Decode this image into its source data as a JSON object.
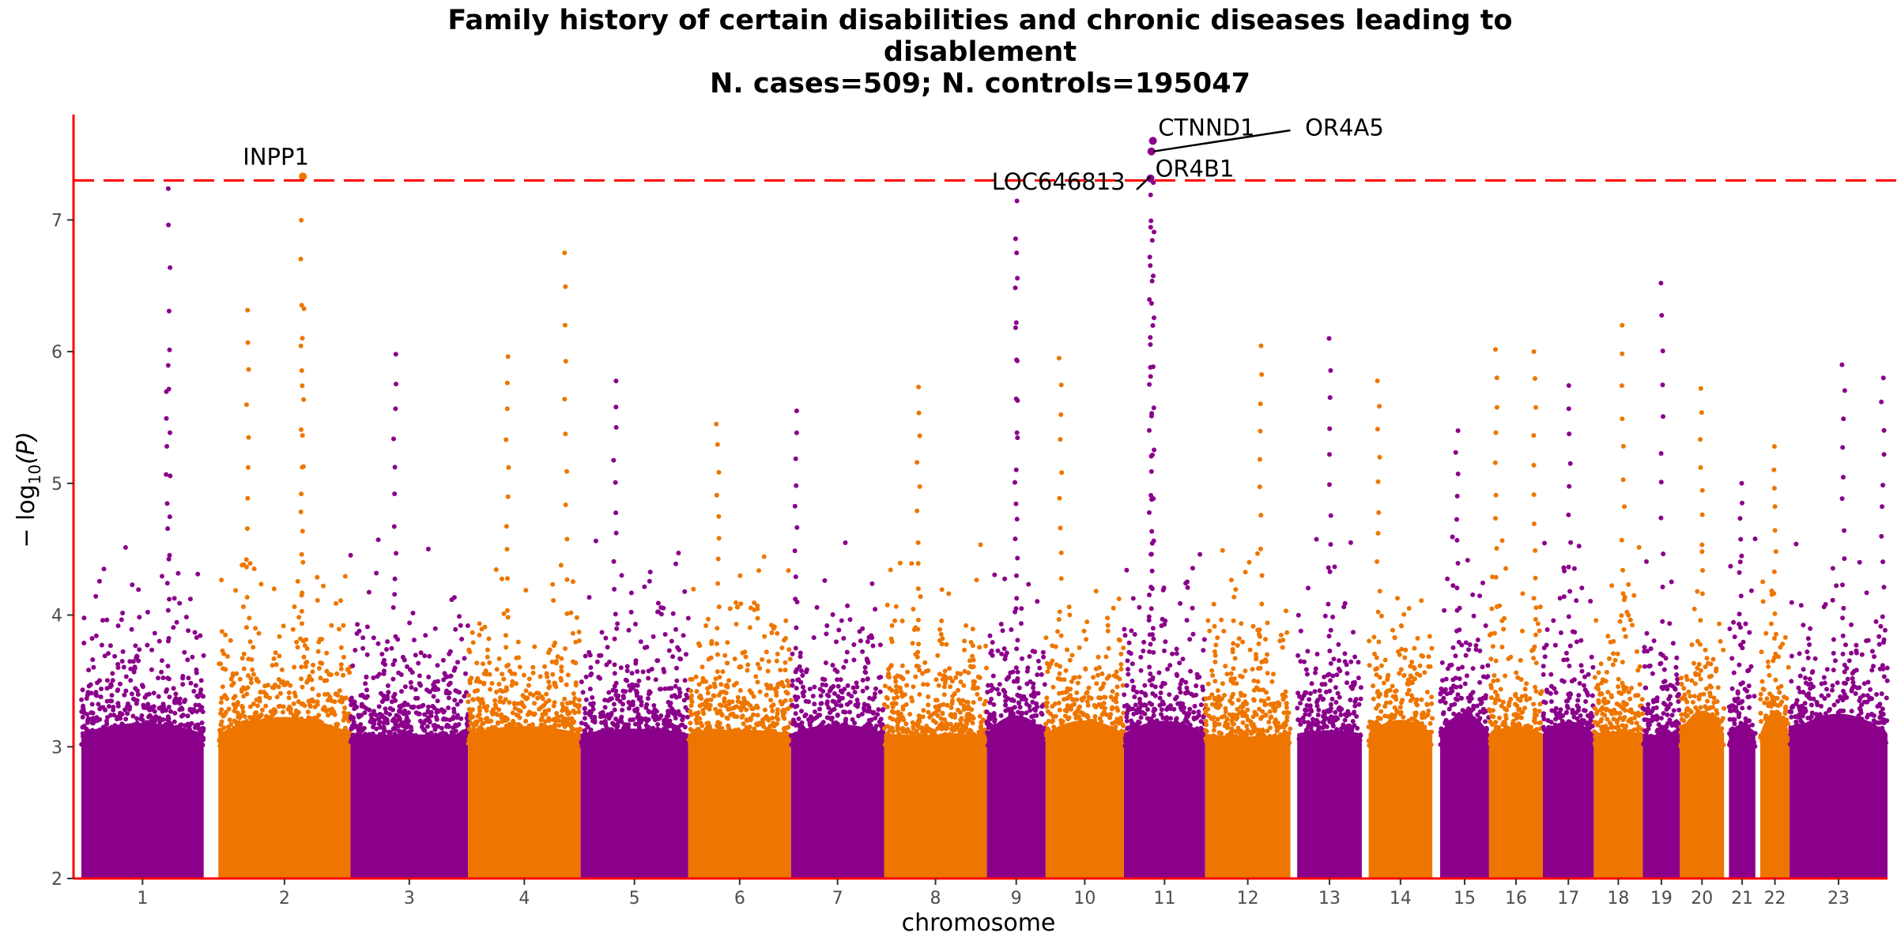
{
  "chart_data": {
    "type": "scatter",
    "title_lines": [
      "Family history of certain disabilities and chronic diseases leading to",
      "disablement",
      "N. cases=509; N. controls=195047"
    ],
    "xlabel": "chromosome",
    "ylabel_main": "− log",
    "ylabel_sub": "10",
    "ylabel_tail": "(P)",
    "ylim": [
      2,
      7.8
    ],
    "yticks": [
      "2",
      "3",
      "4",
      "5",
      "6",
      "7"
    ],
    "significance_threshold": 7.3,
    "grid": false,
    "colors": {
      "odd": "#8b008b",
      "even": "#ee7600",
      "threshold": "#ff0000",
      "axis": "#ff0000"
    },
    "chromosomes": [
      {
        "label": "1",
        "start": 0,
        "end": 1.25,
        "peaks": [
          [
            0.9,
            7.25
          ],
          [
            0.88,
            5.9
          ]
        ]
      },
      {
        "label": "2",
        "start": 1.4,
        "end": 2.75,
        "peaks": [
          [
            2.25,
            7.33
          ],
          [
            2.26,
            6.35
          ],
          [
            1.7,
            6.32
          ]
        ]
      },
      {
        "label": "3",
        "start": 2.75,
        "end": 3.95,
        "peaks": [
          [
            3.2,
            5.98
          ]
        ]
      },
      {
        "label": "4",
        "start": 3.95,
        "end": 5.1,
        "peaks": [
          [
            4.35,
            5.98
          ],
          [
            4.95,
            6.75
          ]
        ]
      },
      {
        "label": "5",
        "start": 5.1,
        "end": 6.2,
        "peaks": [
          [
            5.45,
            5.8
          ]
        ]
      },
      {
        "label": "6",
        "start": 6.2,
        "end": 7.25,
        "peaks": [
          [
            6.5,
            5.45
          ]
        ]
      },
      {
        "label": "7",
        "start": 7.25,
        "end": 8.2,
        "peaks": [
          [
            7.3,
            5.55
          ]
        ]
      },
      {
        "label": "8",
        "start": 8.2,
        "end": 9.25,
        "peaks": [
          [
            8.55,
            5.75
          ]
        ]
      },
      {
        "label": "9",
        "start": 9.25,
        "end": 9.85,
        "peaks": [
          [
            9.55,
            7.15
          ],
          [
            9.55,
            6.75
          ]
        ]
      },
      {
        "label": "10",
        "start": 9.85,
        "end": 10.65,
        "peaks": [
          [
            10.0,
            5.95
          ]
        ]
      },
      {
        "label": "11",
        "start": 10.65,
        "end": 11.48,
        "peaks": [
          [
            10.95,
            7.6
          ],
          [
            10.93,
            7.52
          ],
          [
            10.92,
            7.33
          ],
          [
            10.93,
            6.95
          ]
        ]
      },
      {
        "label": "12",
        "start": 11.48,
        "end": 12.35,
        "peaks": [
          [
            12.05,
            6.05
          ]
        ]
      },
      {
        "label": "13",
        "start": 12.42,
        "end": 13.08,
        "peaks": [
          [
            12.75,
            6.1
          ]
        ]
      },
      {
        "label": "14",
        "start": 13.15,
        "end": 13.8,
        "peaks": [
          [
            13.25,
            5.8
          ]
        ]
      },
      {
        "label": "15",
        "start": 13.88,
        "end": 14.38,
        "peaks": [
          [
            14.05,
            5.4
          ]
        ]
      },
      {
        "label": "16",
        "start": 14.38,
        "end": 14.93,
        "peaks": [
          [
            14.45,
            6.02
          ],
          [
            14.85,
            6.0
          ]
        ]
      },
      {
        "label": "17",
        "start": 14.93,
        "end": 15.45,
        "peaks": [
          [
            15.2,
            5.75
          ]
        ]
      },
      {
        "label": "18",
        "start": 15.45,
        "end": 15.95,
        "peaks": [
          [
            15.75,
            6.2
          ]
        ]
      },
      {
        "label": "19",
        "start": 15.95,
        "end": 16.33,
        "peaks": [
          [
            16.15,
            6.52
          ]
        ]
      },
      {
        "label": "20",
        "start": 16.33,
        "end": 16.78,
        "peaks": [
          [
            16.55,
            5.72
          ]
        ]
      },
      {
        "label": "21",
        "start": 16.83,
        "end": 17.1,
        "peaks": [
          [
            16.95,
            5.0
          ]
        ]
      },
      {
        "label": "22",
        "start": 17.15,
        "end": 17.45,
        "peaks": [
          [
            17.3,
            5.28
          ]
        ]
      },
      {
        "label": "23",
        "start": 17.45,
        "end": 18.45,
        "peaks": [
          [
            18.0,
            5.9
          ],
          [
            18.4,
            5.8
          ]
        ]
      }
    ],
    "xlim": [
      -0.08,
      18.45
    ],
    "annotations": [
      {
        "text": "INPP1",
        "x": 2.25,
        "y": 7.33,
        "tx": 1.65,
        "ty": 7.42,
        "leader": false
      },
      {
        "text": "CTNND1",
        "x": 10.95,
        "y": 7.6,
        "tx": 11.0,
        "ty": 7.64,
        "leader": false
      },
      {
        "text": "OR4A5",
        "x": 10.95,
        "y": 7.52,
        "tx": 12.5,
        "ty": 7.64,
        "leader": true,
        "lx": 12.35,
        "ly": 7.68
      },
      {
        "text": "OR4B1",
        "x": 10.93,
        "y": 7.45,
        "tx": 10.97,
        "ty": 7.33,
        "leader": false
      },
      {
        "text": "LOC646813",
        "x": 10.92,
        "y": 7.33,
        "tx": 9.3,
        "ty": 7.23,
        "leader": true,
        "lx": 10.78,
        "ly": 7.23
      }
    ]
  }
}
